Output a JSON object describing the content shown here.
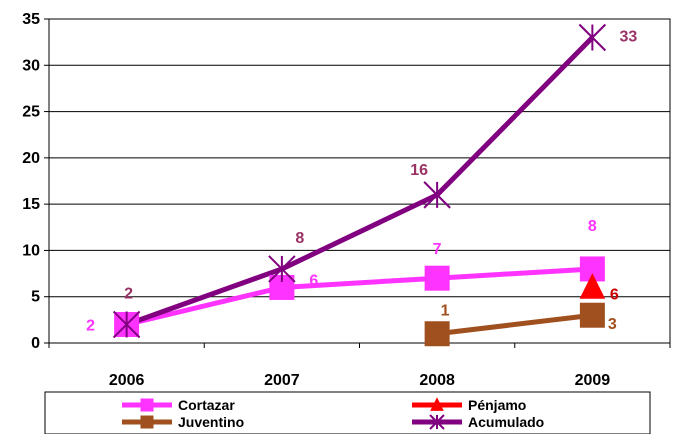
{
  "chart_data": {
    "type": "line",
    "title": "",
    "xlabel": "",
    "ylabel": "",
    "categories": [
      "2006",
      "2007",
      "2008",
      "2009"
    ],
    "ylim": [
      0,
      35
    ],
    "yticks": [
      "0",
      "5",
      "10",
      "15",
      "20",
      "25",
      "30",
      "35"
    ],
    "grid": true,
    "legend_position": "bottom",
    "series": [
      {
        "name": "Cortazar",
        "color": "#ff33ff",
        "marker": "square",
        "values": [
          2,
          6,
          7,
          8
        ],
        "labels": [
          "2",
          "6",
          "7",
          "8"
        ],
        "label_color": "#ff33ff"
      },
      {
        "name": "Pénjamo",
        "color": "#ff0000",
        "marker": "triangle",
        "values": [
          null,
          null,
          null,
          6
        ],
        "labels": [
          null,
          null,
          null,
          "6"
        ],
        "label_color": "#cc0000"
      },
      {
        "name": "Juventino",
        "color": "#a0501e",
        "marker": "square",
        "values": [
          null,
          null,
          1,
          3
        ],
        "labels": [
          null,
          null,
          "1",
          "3"
        ],
        "label_color": "#a0501e"
      },
      {
        "name": "Acumulado",
        "color": "#800080",
        "marker": "asterisk",
        "values": [
          2,
          8,
          16,
          33
        ],
        "labels": [
          "2",
          "8",
          "16",
          "33"
        ],
        "label_color": "#993366"
      }
    ]
  }
}
